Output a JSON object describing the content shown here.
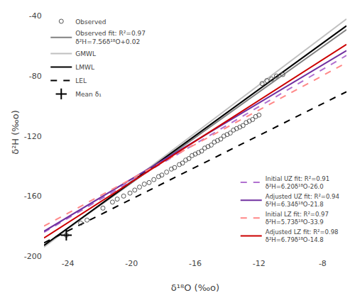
{
  "chart_data": {
    "type": "line",
    "xlabel": "δ¹⁸O (‰o)",
    "ylabel": "δ²H (‰o)",
    "xlim": [
      -25.5,
      -6.5
    ],
    "ylim": [
      -200,
      -35
    ],
    "xticks": [
      -24,
      -20,
      -16,
      -12,
      -8
    ],
    "yticks": [
      -200,
      -160,
      -120,
      -80,
      -40
    ],
    "grid": false,
    "legend": "upper left",
    "series": [
      {
        "name": "Observed",
        "type": "scatter",
        "marker": "open circle",
        "color": "#555555",
        "x": [
          -24.1,
          -23.2,
          -22.8,
          -21.8,
          -21.2,
          -20.9,
          -20.5,
          -20.1,
          -19.8,
          -19.5,
          -19.2,
          -18.9,
          -18.6,
          -18.3,
          -18.1,
          -17.8,
          -17.5,
          -17.3,
          -17.0,
          -16.8,
          -16.6,
          -16.4,
          -16.2,
          -16.0,
          -15.8,
          -15.6,
          -15.4,
          -15.2,
          -15.0,
          -14.8,
          -14.6,
          -14.4,
          -14.2,
          -14.0,
          -13.8,
          -13.6,
          -13.4,
          -13.2,
          -13.0,
          -12.8,
          -12.6,
          -12.4,
          -12.2,
          -12.0,
          -11.8,
          -11.5,
          -11.2,
          -10.9,
          -10.5
        ],
        "values": [
          -186,
          -178,
          -176,
          -168,
          -164,
          -162,
          -160,
          -158,
          -156,
          -154,
          -152,
          -151,
          -149,
          -147,
          -146,
          -144,
          -142,
          -141,
          -139,
          -138,
          -136,
          -135,
          -133,
          -132,
          -131,
          -130,
          -128,
          -127,
          -126,
          -124,
          -123,
          -122,
          -120,
          -119,
          -118,
          -116,
          -115,
          -114,
          -113,
          -111,
          -110,
          -109,
          -107,
          -106,
          -85,
          -83,
          -82,
          -80,
          -79
        ]
      },
      {
        "name": "Observed fit: R²=0.97\nδ²H=7.56δ¹⁸O+0.02",
        "type": "line",
        "line_style": "solid",
        "color": "#808080",
        "x": [
          -25.5,
          -6.5
        ],
        "values": [
          -192.76,
          -49.12
        ]
      },
      {
        "name": "GMWL",
        "type": "line",
        "line_style": "solid",
        "color": "#c0c0c0",
        "x": [
          -25.5,
          -6.5
        ],
        "values": [
          -194,
          -42
        ]
      },
      {
        "name": "LMWL",
        "type": "line",
        "line_style": "solid",
        "color": "#000000",
        "x": [
          -25.5,
          -6.5
        ],
        "values": [
          -192.85,
          -46.55
        ]
      },
      {
        "name": "LEL",
        "type": "line",
        "line_style": "dashed",
        "color": "#000000",
        "x": [
          -25.5,
          -6.5
        ],
        "values": [
          -191.15,
          -90.45
        ]
      },
      {
        "name": "Mean δ₁",
        "type": "scatter",
        "marker": "plus",
        "color": "#000000",
        "x": [
          -24.1
        ],
        "values": [
          -186
        ]
      },
      {
        "name": "Initial UZ fit: R²=0.91\nδ²H=6.20δ¹⁸O-26.0",
        "type": "line",
        "line_style": "dashed",
        "color": "#b070d0",
        "legend": "lower right",
        "x": [
          -25.5,
          -6.5
        ],
        "values": [
          -184.1,
          -66.3
        ]
      },
      {
        "name": "Adjusted UZ fit: R²=0.94\nδ²H=6.34δ¹⁸O-21.8",
        "type": "line",
        "line_style": "solid",
        "color": "#7030a0",
        "legend": "lower right",
        "x": [
          -25.5,
          -6.5
        ],
        "values": [
          -183.47,
          -63.01
        ]
      },
      {
        "name": "Initial LZ fit: R²=0.97\nδ²H=5.73δ¹⁸O-33.9",
        "type": "line",
        "line_style": "dashed",
        "color": "#ff8888",
        "legend": "lower right",
        "x": [
          -25.5,
          -6.5
        ],
        "values": [
          -180.015,
          -71.145
        ]
      },
      {
        "name": "Adjusted LZ fit: R²=0.98\nδ²H=6.79δ¹⁸O-14.8",
        "type": "line",
        "line_style": "solid",
        "color": "#cc0000",
        "legend": "lower right",
        "x": [
          -25.5,
          -6.5
        ],
        "values": [
          -187.945,
          -58.935
        ]
      }
    ]
  }
}
